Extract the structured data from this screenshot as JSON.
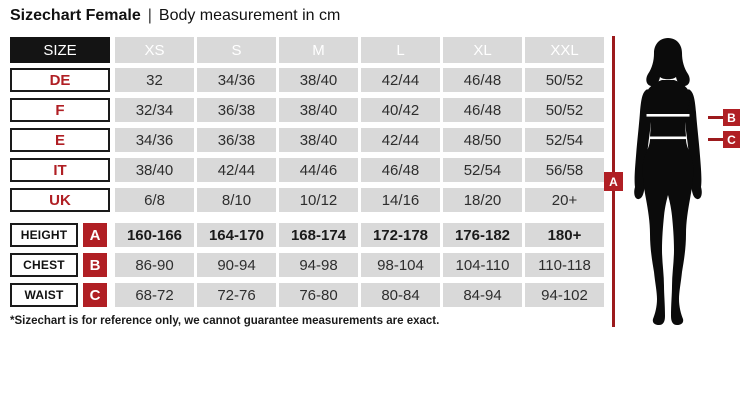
{
  "title": {
    "main": "Sizechart Female",
    "separator": "|",
    "subtitle": "Body measurement in cm"
  },
  "table": {
    "header": {
      "size_label": "SIZE",
      "columns": [
        "XS",
        "S",
        "M",
        "L",
        "XL",
        "XXL"
      ]
    },
    "size_rows": [
      {
        "label": "DE",
        "values": [
          "32",
          "34/36",
          "38/40",
          "42/44",
          "46/48",
          "50/52"
        ]
      },
      {
        "label": "F",
        "values": [
          "32/34",
          "36/38",
          "38/40",
          "40/42",
          "46/48",
          "50/52"
        ]
      },
      {
        "label": "E",
        "values": [
          "34/36",
          "36/38",
          "38/40",
          "42/44",
          "48/50",
          "52/54"
        ]
      },
      {
        "label": "IT",
        "values": [
          "38/40",
          "42/44",
          "44/46",
          "46/48",
          "52/54",
          "56/58"
        ]
      },
      {
        "label": "UK",
        "values": [
          "6/8",
          "8/10",
          "10/12",
          "14/16",
          "18/20",
          "20+"
        ]
      }
    ],
    "measure_rows": [
      {
        "label": "HEIGHT",
        "badge": "A",
        "bold": true,
        "values": [
          "160-166",
          "164-170",
          "168-174",
          "172-178",
          "176-182",
          "180+"
        ]
      },
      {
        "label": "CHEST",
        "badge": "B",
        "bold": false,
        "values": [
          "86-90",
          "90-94",
          "94-98",
          "98-104",
          "104-110",
          "110-118"
        ]
      },
      {
        "label": "WAIST",
        "badge": "C",
        "bold": false,
        "values": [
          "68-72",
          "72-76",
          "76-80",
          "80-84",
          "84-94",
          "94-102"
        ]
      }
    ]
  },
  "footnote": "*Sizechart is for reference only, we cannot guarantee measurements are exact.",
  "figure": {
    "labels": {
      "a": "A",
      "b": "B",
      "c": "C"
    }
  },
  "colors": {
    "accent_red": "#b01f24",
    "measure_line_red": "#9c1a1d",
    "cell_gray": "#d9d9d9",
    "header_black": "#141414",
    "value_text": "#2e2e2e"
  }
}
